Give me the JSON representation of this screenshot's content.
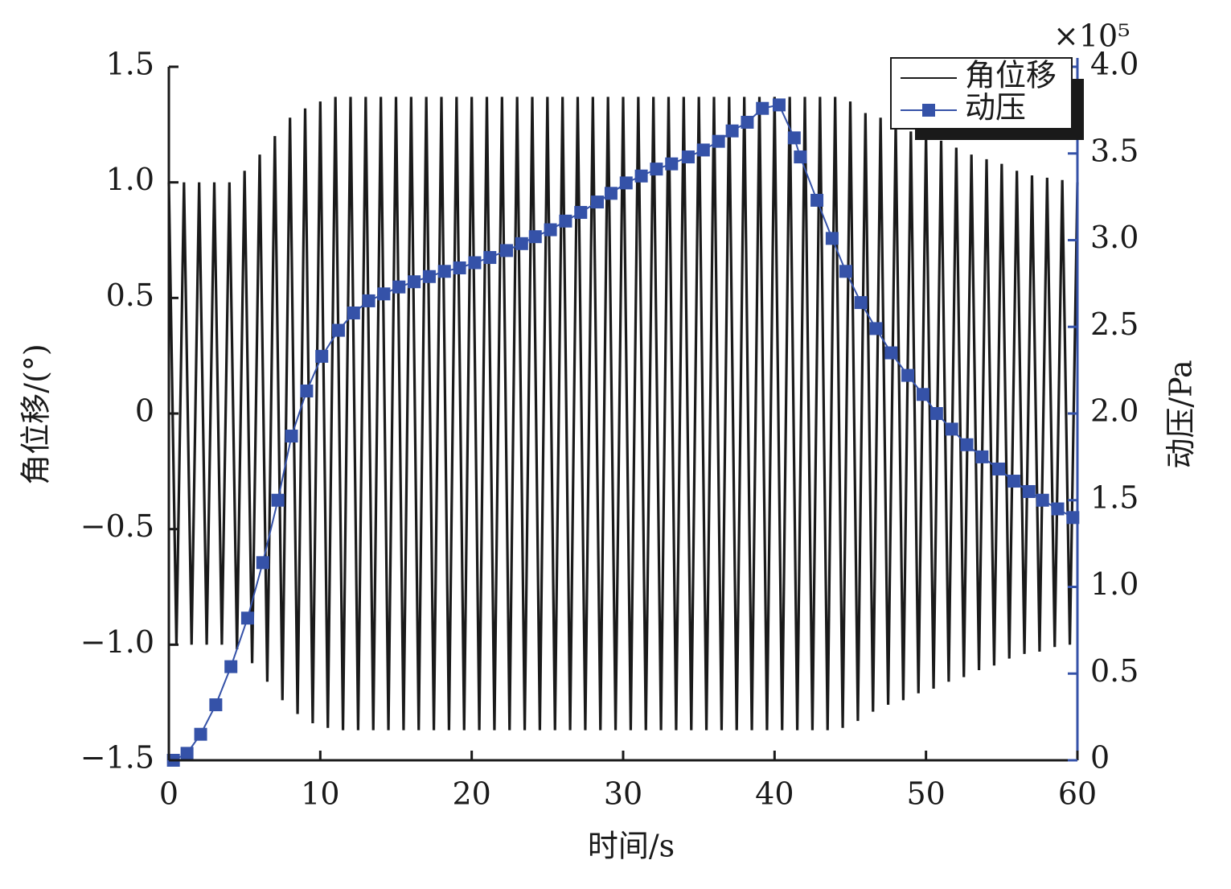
{
  "chart_data": {
    "type": "line",
    "xlabel": "时间/s",
    "ylabel": "角位移/(°)",
    "y2label": "动压/Pa",
    "y2_multiplier": "×10⁵",
    "xlim": [
      0,
      60
    ],
    "xticks": [
      0,
      10,
      20,
      30,
      40,
      50,
      60
    ],
    "ylim": [
      -1.5,
      1.5
    ],
    "yticks": [
      {
        "value": -1.5,
        "label": "−1.5"
      },
      {
        "value": -1,
        "label": "−1.0"
      },
      {
        "value": -0.5,
        "label": "−0.5"
      },
      0,
      0.5,
      {
        "value": 1,
        "label": "1.0"
      },
      1.5
    ],
    "y2lim": [
      0,
      4
    ],
    "y2ticks": [
      0,
      0.5,
      {
        "value": 1,
        "label": "1.0"
      },
      1.5,
      {
        "value": 2,
        "label": "2.0"
      },
      2.5,
      {
        "value": 3,
        "label": "3.0"
      },
      3.5,
      {
        "value": 4,
        "label": "4.0"
      }
    ],
    "legend": "upper right",
    "series": [
      {
        "name": "角位移",
        "color": "#1a1a1a",
        "x": [
          0,
          0.5,
          1,
          1.5,
          2,
          2.5,
          3,
          3.5,
          4,
          4.5,
          5,
          5.5,
          6,
          6.5,
          7,
          7.5,
          8,
          8.5,
          9,
          9.5,
          10,
          10.5,
          11,
          11.5,
          12,
          12.5,
          13,
          13.5,
          14,
          14.5,
          15,
          15.5,
          16,
          16.5,
          17,
          17.5,
          18,
          18.5,
          19,
          19.5,
          20,
          20.5,
          21,
          21.5,
          22,
          22.5,
          23,
          23.5,
          24,
          24.5,
          25,
          25.5,
          26,
          26.5,
          27,
          27.5,
          28,
          28.5,
          29,
          29.5,
          30,
          30.5,
          31,
          31.5,
          32,
          32.5,
          33,
          33.5,
          34,
          34.5,
          35,
          35.5,
          36,
          36.5,
          37,
          37.5,
          38,
          38.5,
          39,
          39.5,
          40,
          40.5,
          41,
          41.5,
          42,
          42.5,
          43,
          43.5,
          44,
          44.5,
          45,
          45.5,
          46,
          46.5,
          47,
          47.5,
          48,
          48.5,
          49,
          49.5,
          50,
          50.5,
          51,
          51.5,
          52,
          52.5,
          53,
          53.5,
          54,
          54.5,
          55,
          55.5,
          56,
          56.5,
          57,
          57.5,
          58,
          58.5,
          59,
          59.5,
          60
        ],
        "values": [
          1,
          -1,
          1,
          -1,
          1,
          -1,
          1,
          -1,
          1,
          -1.02,
          1.05,
          -1.08,
          1.12,
          -1.16,
          1.2,
          -1.24,
          1.28,
          -1.3,
          1.32,
          -1.34,
          1.35,
          -1.36,
          1.37,
          -1.37,
          1.37,
          -1.37,
          1.37,
          -1.37,
          1.37,
          -1.37,
          1.37,
          -1.37,
          1.37,
          -1.37,
          1.37,
          -1.37,
          1.37,
          -1.37,
          1.37,
          -1.37,
          1.37,
          -1.37,
          1.37,
          -1.37,
          1.37,
          -1.37,
          1.37,
          -1.37,
          1.37,
          -1.37,
          1.37,
          -1.37,
          1.37,
          -1.37,
          1.37,
          -1.37,
          1.37,
          -1.37,
          1.37,
          -1.37,
          1.37,
          -1.37,
          1.37,
          -1.37,
          1.37,
          -1.37,
          1.37,
          -1.37,
          1.37,
          -1.37,
          1.37,
          -1.37,
          1.37,
          -1.37,
          1.37,
          -1.37,
          1.37,
          -1.37,
          1.37,
          -1.37,
          1.37,
          -1.37,
          1.37,
          -1.37,
          1.37,
          -1.37,
          1.37,
          -1.37,
          1.37,
          -1.36,
          1.35,
          -1.33,
          1.3,
          -1.29,
          1.28,
          -1.26,
          1.25,
          -1.24,
          1.22,
          -1.21,
          1.2,
          -1.19,
          1.18,
          -1.16,
          1.15,
          -1.14,
          1.12,
          -1.11,
          1.1,
          -1.09,
          1.08,
          -1.06,
          1.05,
          -1.04,
          1.03,
          -1.03,
          1.02,
          -1.01,
          1.01,
          -1,
          1
        ]
      },
      {
        "name": "动压",
        "color": "#3552a8",
        "axis": "y2",
        "marker": "square",
        "x": [
          0.3,
          1.2,
          2.1,
          3.1,
          4.1,
          5.2,
          6.2,
          7.2,
          8.1,
          9.1,
          10.1,
          11.2,
          12.2,
          13.2,
          14.2,
          15.2,
          16.2,
          17.2,
          18.2,
          19.2,
          20.2,
          21.2,
          22.3,
          23.3,
          24.2,
          25.2,
          26.2,
          27.2,
          28.3,
          29.2,
          30.2,
          31.2,
          32.2,
          33.2,
          34.3,
          35.3,
          36.3,
          37.2,
          38.2,
          39.2,
          40.3,
          41.3,
          41.7,
          42.8,
          43.8,
          44.7,
          45.7,
          46.7,
          47.7,
          48.8,
          49.8,
          50.7,
          51.7,
          52.7,
          53.7,
          54.8,
          55.8,
          56.8,
          57.7,
          58.7,
          59.7
        ],
        "values": [
          0,
          0.04,
          0.15,
          0.32,
          0.54,
          0.82,
          1.14,
          1.5,
          1.87,
          2.13,
          2.33,
          2.48,
          2.58,
          2.65,
          2.69,
          2.73,
          2.76,
          2.79,
          2.82,
          2.84,
          2.87,
          2.9,
          2.94,
          2.98,
          3.02,
          3.06,
          3.11,
          3.16,
          3.22,
          3.27,
          3.33,
          3.37,
          3.41,
          3.44,
          3.48,
          3.52,
          3.57,
          3.63,
          3.68,
          3.76,
          3.78,
          3.59,
          3.48,
          3.23,
          3.01,
          2.82,
          2.64,
          2.49,
          2.35,
          2.22,
          2.11,
          2,
          1.91,
          1.82,
          1.75,
          1.68,
          1.61,
          1.55,
          1.5,
          1.45,
          1.4
        ]
      }
    ]
  }
}
